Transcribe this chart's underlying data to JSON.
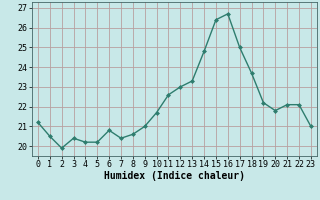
{
  "x": [
    0,
    1,
    2,
    3,
    4,
    5,
    6,
    7,
    8,
    9,
    10,
    11,
    12,
    13,
    14,
    15,
    16,
    17,
    18,
    19,
    20,
    21,
    22,
    23
  ],
  "y": [
    21.2,
    20.5,
    19.9,
    20.4,
    20.2,
    20.2,
    20.8,
    20.4,
    20.6,
    21.0,
    21.7,
    22.6,
    23.0,
    23.3,
    24.8,
    26.4,
    26.7,
    25.0,
    23.7,
    22.2,
    21.8,
    22.1,
    22.1,
    21.0
  ],
  "line_color": "#2e7d6e",
  "marker": "D",
  "marker_size": 2.0,
  "bg_color": "#c8e8e8",
  "grid_color": "#b8a0a0",
  "xlabel": "Humidex (Indice chaleur)",
  "ylim": [
    19.5,
    27.3
  ],
  "yticks": [
    20,
    21,
    22,
    23,
    24,
    25,
    26,
    27
  ],
  "xticks": [
    0,
    1,
    2,
    3,
    4,
    5,
    6,
    7,
    8,
    9,
    10,
    11,
    12,
    13,
    14,
    15,
    16,
    17,
    18,
    19,
    20,
    21,
    22,
    23
  ],
  "xlabel_fontsize": 7.0,
  "tick_fontsize": 6.0,
  "linewidth": 1.0
}
